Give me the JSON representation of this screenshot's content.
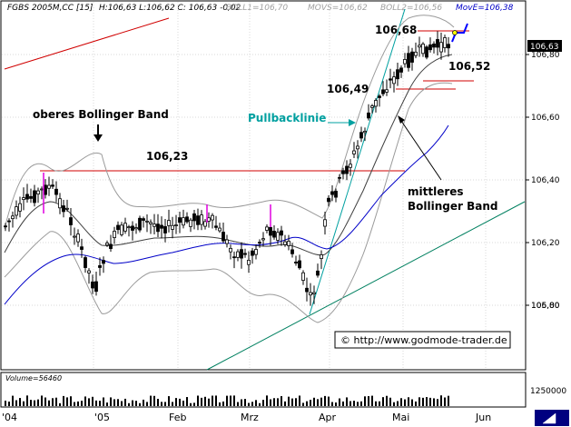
{
  "chart_data": {
    "type": "candlestick",
    "header": {
      "symbol": "FGBS 2005M,CC [15]",
      "ohlc": "H:106,63 L:106,62 C: 106,63 -0,02",
      "boll1": "BOLL1=106,70",
      "movs": "MOVS=106,62",
      "boll2": "BOLL2=106,56",
      "move": "MovE=106,38"
    },
    "y_ticks": [
      "106,80",
      "106,60",
      "106,40",
      "106,20",
      "106,00",
      "105,80"
    ],
    "current_price_label": "106,63",
    "x_ticks": [
      "'04",
      "'05",
      "Feb",
      "Mrz",
      "Apr",
      "Mai",
      "Jun"
    ],
    "ylim": [
      105.64,
      106.86
    ],
    "volume_label": "Volume=56460",
    "volume_tick": "1250000",
    "annotations": {
      "level_10668": "106,68",
      "level_10652": "106,52",
      "level_10649": "106,49",
      "level_10623": "106,23",
      "upper_band": "oberes Bollinger Band",
      "pullback": "Pullbacklinie",
      "middle_band_1": "mittleres",
      "middle_band_2": "Bollinger Band",
      "copyright": "© http://www.godmode-trader.de"
    },
    "horizontal_levels": [
      {
        "label": "106,23",
        "value": 106.23
      },
      {
        "label": "106,49",
        "value": 106.49
      },
      {
        "label": "106,52",
        "value": 106.52
      },
      {
        "label": "106,68",
        "value": 106.68
      }
    ],
    "colors": {
      "candle": "#000000",
      "upper_lower_band": "#9a9a9a",
      "middle_band": "#404040",
      "moving_average": "#0000c8",
      "resistance": "#d00000",
      "trendline_teal": "#00a0a0",
      "trendline_green": "#008060",
      "projection": "#0000ff"
    }
  }
}
